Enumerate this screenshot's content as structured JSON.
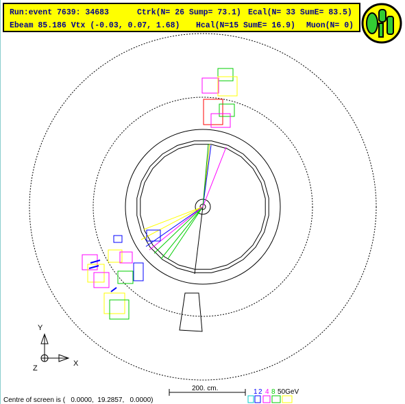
{
  "header": {
    "line1": {
      "run_event": "Run:event 7639: 34683",
      "ctrk": "Ctrk(N= 26 Sump= 73.1)",
      "ecal": "Ecal(N= 33 SumE= 83.5)"
    },
    "line2": {
      "ebeam": "Ebeam 85.186 Vtx (-0.03, 0.07, 1.68)",
      "hcal": "Hcal(N=15 SumE= 16.9)",
      "muon": "Muon(N= 0)"
    }
  },
  "axes": {
    "y": "Y",
    "x": "X",
    "z": "Z"
  },
  "scale": "200. cm.",
  "legend": [
    "1",
    "2",
    "4",
    "8",
    "50GeV"
  ],
  "footer": "Centre of screen is (   0.0000,  19.2857,   0.0000)"
}
